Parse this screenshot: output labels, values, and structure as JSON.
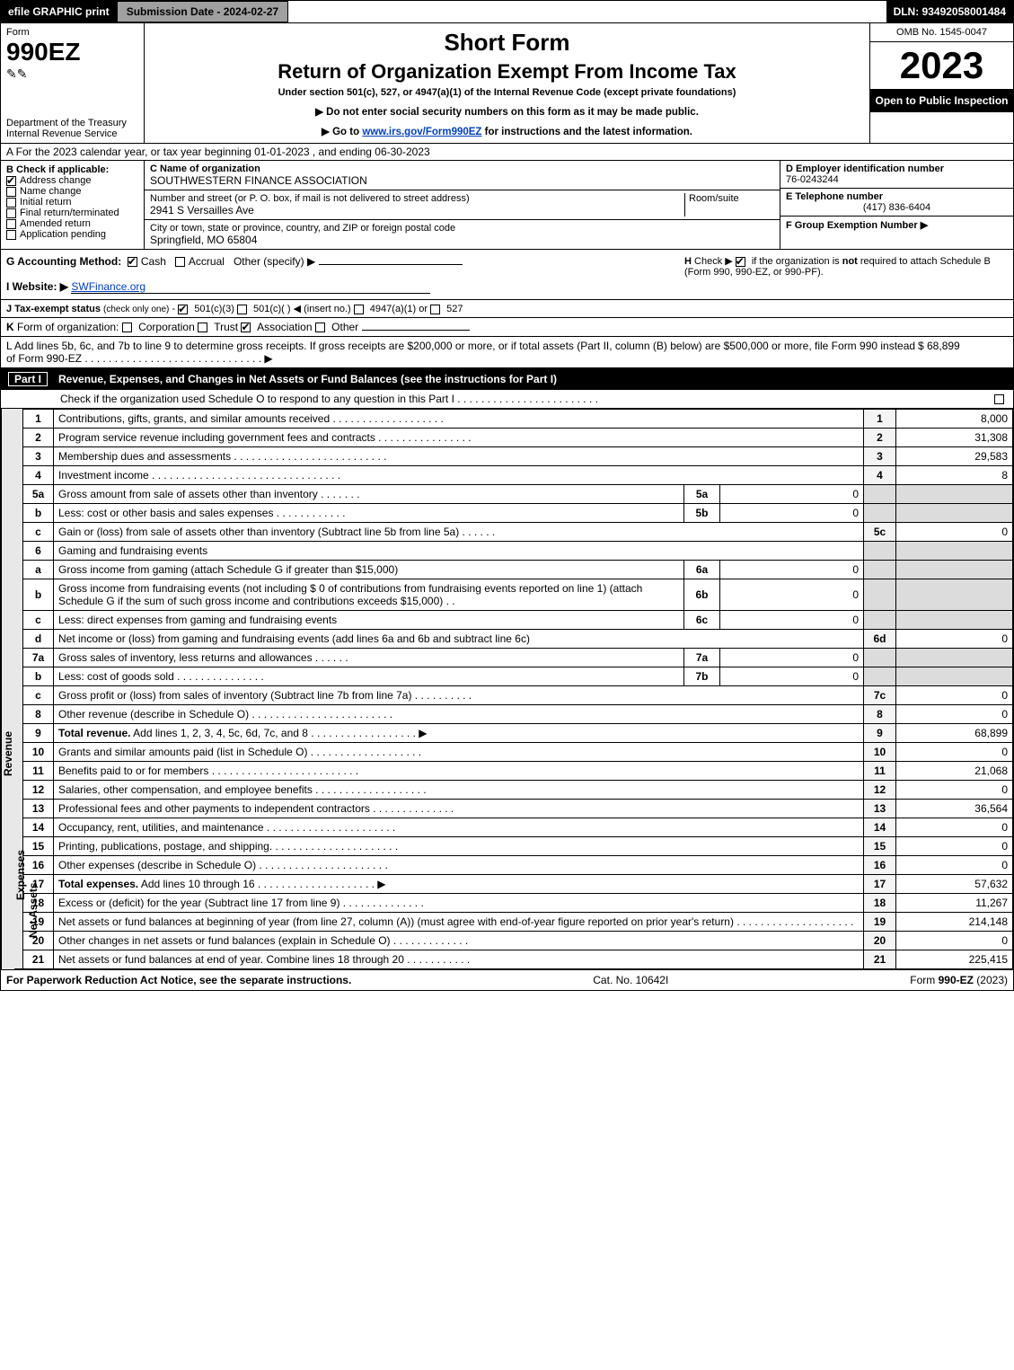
{
  "header": {
    "efile": "efile GRAPHIC print",
    "submission": "Submission Date - 2024-02-27",
    "dln": "DLN: 93492058001484"
  },
  "topbox": {
    "form_label": "Form",
    "form_number": "990EZ",
    "dept1": "Department of the Treasury",
    "dept2": "Internal Revenue Service",
    "short_form": "Short Form",
    "title": "Return of Organization Exempt From Income Tax",
    "subtitle": "Under section 501(c), 527, or 4947(a)(1) of the Internal Revenue Code (except private foundations)",
    "note1": "▶ Do not enter social security numbers on this form as it may be made public.",
    "note2_pre": "▶ Go to ",
    "note2_link": "www.irs.gov/Form990EZ",
    "note2_post": " for instructions and the latest information.",
    "omb": "OMB No. 1545-0047",
    "year": "2023",
    "open": "Open to Public Inspection"
  },
  "rowA": "A  For the 2023 calendar year, or tax year beginning 01-01-2023  , and ending 06-30-2023",
  "sectionB": {
    "heading": "B  Check if applicable:",
    "opts": [
      {
        "label": "Address change",
        "checked": true
      },
      {
        "label": "Name change",
        "checked": false
      },
      {
        "label": "Initial return",
        "checked": false
      },
      {
        "label": "Final return/terminated",
        "checked": false
      },
      {
        "label": "Amended return",
        "checked": false
      },
      {
        "label": "Application pending",
        "checked": false
      }
    ],
    "c_label": "C Name of organization",
    "c_value": "SOUTHWESTERN FINANCE ASSOCIATION",
    "addr_label": "Number and street (or P. O. box, if mail is not delivered to street address)",
    "room_label": "Room/suite",
    "addr_value": "2941 S Versailles Ave",
    "city_label": "City or town, state or province, country, and ZIP or foreign postal code",
    "city_value": "Springfield, MO  65804",
    "d_label": "D Employer identification number",
    "d_value": "76-0243244",
    "e_label": "E Telephone number",
    "e_value": "(417) 836-6404",
    "f_label": "F Group Exemption Number  ▶"
  },
  "sectionG": {
    "g_label": "G Accounting Method:",
    "g_cash": "Cash",
    "g_accrual": "Accrual",
    "g_other": "Other (specify) ▶",
    "h_text": "H  Check ▶       if the organization is not required to attach Schedule B (Form 990, 990-EZ, or 990-PF).",
    "i_label": "I Website: ▶",
    "i_value": "SWFinance.org",
    "j_label": "J Tax-exempt status (check only one) -        501(c)(3)        501(c)(  )  ◀ (insert no.)        4947(a)(1) or        527"
  },
  "rowK": "K Form of organization:        Corporation        Trust        Association        Other",
  "rowL": {
    "text": "L Add lines 5b, 6c, and 7b to line 9 to determine gross receipts. If gross receipts are $200,000 or more, or if total assets (Part II, column (B) below) are $500,000 or more, file Form 990 instead of Form 990-EZ  .   .   .   .   .   .   .   .   .   .   .   .   .   .   .   .   .   .   .   .   .   .   .   .   .   .   .   .   .   .  ▶",
    "amount": "$ 68,899"
  },
  "partI": {
    "title": "Part I",
    "heading": "Revenue, Expenses, and Changes in Net Assets or Fund Balances (see the instructions for Part I)",
    "check_line": "Check if the organization used Schedule O to respond to any question in this Part I  .  .  .  .  .  .  .  .  .  .  .  .  .  .  .  .  .  .  .  .  .  .  .  .",
    "sections": {
      "revenue": "Revenue",
      "expenses": "Expenses",
      "netassets": "Net Assets"
    }
  },
  "lines": [
    {
      "sec": "revenue",
      "n": "1",
      "desc": "Contributions, gifts, grants, and similar amounts received  .   .   .   .   .   .   .   .   .   .   .   .   .   .   .   .   .   .   .",
      "box": "1",
      "amt": "8,000"
    },
    {
      "sec": "revenue",
      "n": "2",
      "desc": "Program service revenue including government fees and contracts  .   .   .   .   .   .   .   .   .   .   .   .   .   .   .   .",
      "box": "2",
      "amt": "31,308"
    },
    {
      "sec": "revenue",
      "n": "3",
      "desc": "Membership dues and assessments  .   .   .   .   .   .   .   .   .   .   .   .   .   .   .   .   .   .   .   .   .   .   .   .   .   .",
      "box": "3",
      "amt": "29,583"
    },
    {
      "sec": "revenue",
      "n": "4",
      "desc": "Investment income  .   .   .   .   .   .   .   .   .   .   .   .   .   .   .   .   .   .   .   .   .   .   .   .   .   .   .   .   .   .   .   .",
      "box": "4",
      "amt": "8"
    },
    {
      "sec": "revenue",
      "n": "5a",
      "desc": "Gross amount from sale of assets other than inventory  .   .   .   .   .   .   .",
      "mid": "5a",
      "midamt": "0",
      "gray": true
    },
    {
      "sec": "revenue",
      "n": "b",
      "desc": "Less: cost or other basis and sales expenses  .   .   .   .   .   .   .   .   .   .   .   .",
      "mid": "5b",
      "midamt": "0",
      "gray": true
    },
    {
      "sec": "revenue",
      "n": "c",
      "desc": "Gain or (loss) from sale of assets other than inventory (Subtract line 5b from line 5a)   .   .   .   .   .   .",
      "box": "5c",
      "amt": "0"
    },
    {
      "sec": "revenue",
      "n": "6",
      "desc": "Gaming and fundraising events",
      "gray": true,
      "headeronly": true
    },
    {
      "sec": "revenue",
      "n": "a",
      "desc": "Gross income from gaming (attach Schedule G if greater than $15,000)",
      "mid": "6a",
      "midamt": "0",
      "gray": true
    },
    {
      "sec": "revenue",
      "n": "b",
      "desc": "Gross income from fundraising events (not including $  0                     of contributions from fundraising events reported on line 1) (attach Schedule G if the sum of such gross income and contributions exceeds $15,000)    .   .",
      "mid": "6b",
      "midamt": "0",
      "gray": true
    },
    {
      "sec": "revenue",
      "n": "c",
      "desc": "Less: direct expenses from gaming and fundraising events",
      "mid": "6c",
      "midamt": "0",
      "gray": true
    },
    {
      "sec": "revenue",
      "n": "d",
      "desc": "Net income or (loss) from gaming and fundraising events (add lines 6a and 6b and subtract line 6c)",
      "box": "6d",
      "amt": "0"
    },
    {
      "sec": "revenue",
      "n": "7a",
      "desc": "Gross sales of inventory, less returns and allowances  .   .   .   .   .   .",
      "mid": "7a",
      "midamt": "0",
      "gray": true
    },
    {
      "sec": "revenue",
      "n": "b",
      "desc": "Less: cost of goods sold       .   .   .   .   .   .   .   .   .   .   .   .   .   .   .",
      "mid": "7b",
      "midamt": "0",
      "gray": true
    },
    {
      "sec": "revenue",
      "n": "c",
      "desc": "Gross profit or (loss) from sales of inventory (Subtract line 7b from line 7a)   .   .   .   .   .   .   .   .   .   .",
      "box": "7c",
      "amt": "0"
    },
    {
      "sec": "revenue",
      "n": "8",
      "desc": "Other revenue (describe in Schedule O)  .   .   .   .   .   .   .   .   .   .   .   .   .   .   .   .   .   .   .   .   .   .   .   .",
      "box": "8",
      "amt": "0"
    },
    {
      "sec": "revenue",
      "n": "9",
      "desc": "Total revenue. Add lines 1, 2, 3, 4, 5c, 6d, 7c, and 8   .   .   .   .   .   .   .   .   .   .   .   .   .   .   .   .   .   .   ▶",
      "box": "9",
      "amt": "68,899",
      "bold": true
    },
    {
      "sec": "expenses",
      "n": "10",
      "desc": "Grants and similar amounts paid (list in Schedule O)  .   .   .   .   .   .   .   .   .   .   .   .   .   .   .   .   .   .   .",
      "box": "10",
      "amt": "0"
    },
    {
      "sec": "expenses",
      "n": "11",
      "desc": "Benefits paid to or for members     .   .   .   .   .   .   .   .   .   .   .   .   .   .   .   .   .   .   .   .   .   .   .   .   .",
      "box": "11",
      "amt": "21,068"
    },
    {
      "sec": "expenses",
      "n": "12",
      "desc": "Salaries, other compensation, and employee benefits .   .   .   .   .   .   .   .   .   .   .   .   .   .   .   .   .   .   .",
      "box": "12",
      "amt": "0"
    },
    {
      "sec": "expenses",
      "n": "13",
      "desc": "Professional fees and other payments to independent contractors  .   .   .   .   .   .   .   .   .   .   .   .   .   .",
      "box": "13",
      "amt": "36,564"
    },
    {
      "sec": "expenses",
      "n": "14",
      "desc": "Occupancy, rent, utilities, and maintenance .   .   .   .   .   .   .   .   .   .   .   .   .   .   .   .   .   .   .   .   .   .",
      "box": "14",
      "amt": "0"
    },
    {
      "sec": "expenses",
      "n": "15",
      "desc": "Printing, publications, postage, and shipping.  .   .   .   .   .   .   .   .   .   .   .   .   .   .   .   .   .   .   .   .   .",
      "box": "15",
      "amt": "0"
    },
    {
      "sec": "expenses",
      "n": "16",
      "desc": "Other expenses (describe in Schedule O)    .   .   .   .   .   .   .   .   .   .   .   .   .   .   .   .   .   .   .   .   .   .",
      "box": "16",
      "amt": "0"
    },
    {
      "sec": "expenses",
      "n": "17",
      "desc": "Total expenses. Add lines 10 through 16     .   .   .   .   .   .   .   .   .   .   .   .   .   .   .   .   .   .   .   .   ▶",
      "box": "17",
      "amt": "57,632",
      "bold": true
    },
    {
      "sec": "netassets",
      "n": "18",
      "desc": "Excess or (deficit) for the year (Subtract line 17 from line 9)       .   .   .   .   .   .   .   .   .   .   .   .   .   .",
      "box": "18",
      "amt": "11,267"
    },
    {
      "sec": "netassets",
      "n": "19",
      "desc": "Net assets or fund balances at beginning of year (from line 27, column (A)) (must agree with end-of-year figure reported on prior year's return) .   .   .   .   .   .   .   .   .   .   .   .   .   .   .   .   .   .   .   .",
      "box": "19",
      "amt": "214,148"
    },
    {
      "sec": "netassets",
      "n": "20",
      "desc": "Other changes in net assets or fund balances (explain in Schedule O) .   .   .   .   .   .   .   .   .   .   .   .   .",
      "box": "20",
      "amt": "0"
    },
    {
      "sec": "netassets",
      "n": "21",
      "desc": "Net assets or fund balances at end of year. Combine lines 18 through 20 .   .   .   .   .   .   .   .   .   .   .",
      "box": "21",
      "amt": "225,415"
    }
  ],
  "footer": {
    "left": "For Paperwork Reduction Act Notice, see the separate instructions.",
    "mid": "Cat. No. 10642I",
    "right": "Form 990-EZ (2023)"
  },
  "colors": {
    "black": "#000000",
    "gray_header": "#a0a0a0",
    "gray_cell": "#dcdcdc",
    "gray_box": "#f4f4f4",
    "sidebar": "#e8e8e8",
    "link": "#0040c0"
  }
}
